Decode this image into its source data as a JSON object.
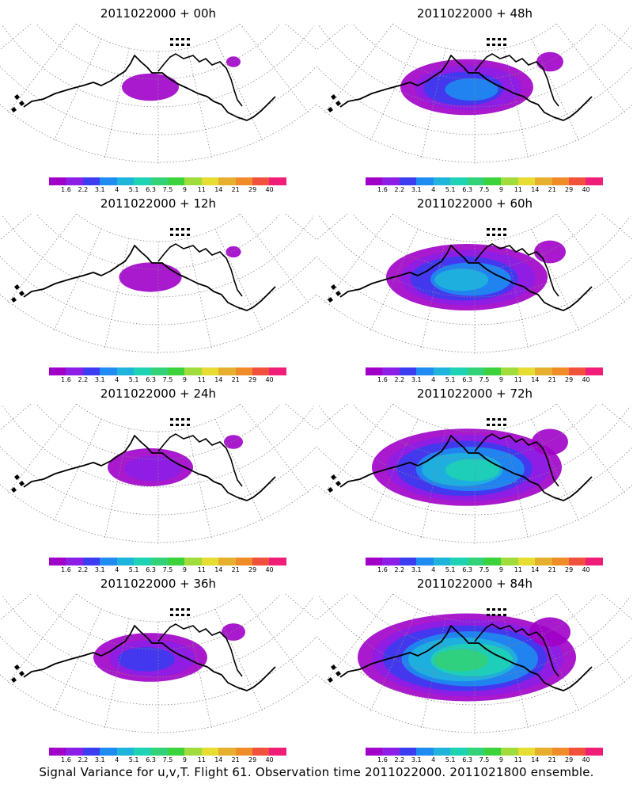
{
  "caption": "Signal Variance for u,v,T. Flight 61. Observation time 2011022000. 2011021800 ensemble.",
  "colorbar": {
    "labels": [
      "1.6",
      "2.2",
      "3.1",
      "4",
      "5.1",
      "6.3",
      "7.5",
      "9",
      "11",
      "14",
      "21",
      "29",
      "40"
    ],
    "colors": [
      "#a000c8",
      "#8c1ee6",
      "#3c3cf0",
      "#1e8cf0",
      "#1eb4dc",
      "#1ed2b4",
      "#32d278",
      "#3cd23c",
      "#a0dc3c",
      "#e6dc32",
      "#e6af2d",
      "#f08c28",
      "#f0503c",
      "#f01e78"
    ]
  },
  "panels": [
    {
      "id": "p00",
      "title": "2011022000 + 00h",
      "intensity": 0.05
    },
    {
      "id": "p48",
      "title": "2011022000 + 48h",
      "intensity": 0.45
    },
    {
      "id": "p12",
      "title": "2011022000 + 12h",
      "intensity": 0.08
    },
    {
      "id": "p60",
      "title": "2011022000 + 60h",
      "intensity": 0.6
    },
    {
      "id": "p24",
      "title": "2011022000 + 24h",
      "intensity": 0.2
    },
    {
      "id": "p72",
      "title": "2011022000 + 72h",
      "intensity": 0.75
    },
    {
      "id": "p36",
      "title": "2011022000 + 36h",
      "intensity": 0.35
    },
    {
      "id": "p84",
      "title": "2011022000 + 84h",
      "intensity": 0.9
    }
  ],
  "chart_data": {
    "type": "heatmap",
    "title": "",
    "forecast_hours": [
      0,
      12,
      24,
      36,
      48,
      60,
      72,
      84
    ],
    "base_time": "2011022000",
    "colorbar_levels": [
      1.6,
      2.2,
      3.1,
      4,
      5.1,
      6.3,
      7.5,
      9,
      11,
      14,
      21,
      29,
      40
    ],
    "legend": "bottom of each panel"
  }
}
